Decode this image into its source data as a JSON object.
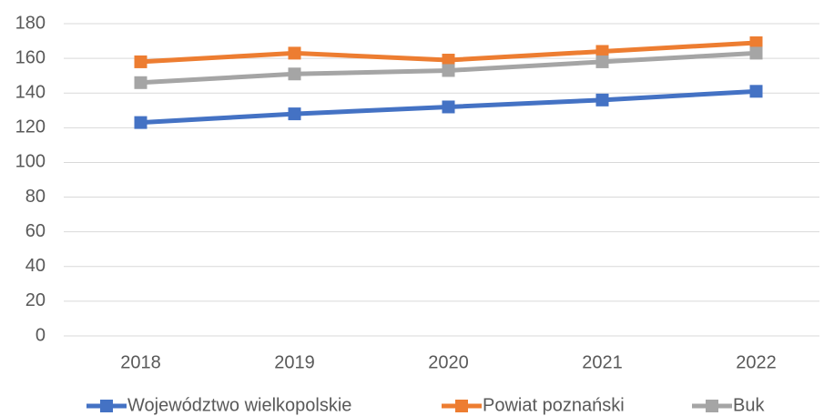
{
  "chart_data": {
    "type": "line",
    "categories": [
      "2018",
      "2019",
      "2020",
      "2021",
      "2022"
    ],
    "series": [
      {
        "name": "Województwo wielkopolskie",
        "color": "#4472c4",
        "values": [
          123,
          128,
          132,
          136,
          141
        ]
      },
      {
        "name": "Powiat poznański",
        "color": "#ed7d31",
        "values": [
          158,
          163,
          159,
          164,
          169
        ]
      },
      {
        "name": "Buk",
        "color": "#a5a5a5",
        "values": [
          146,
          151,
          153,
          158,
          163
        ]
      }
    ],
    "ylim": [
      0,
      180
    ],
    "yticks": [
      0,
      20,
      40,
      60,
      80,
      100,
      120,
      140,
      160,
      180
    ],
    "grid": true,
    "legend": "bottom"
  }
}
